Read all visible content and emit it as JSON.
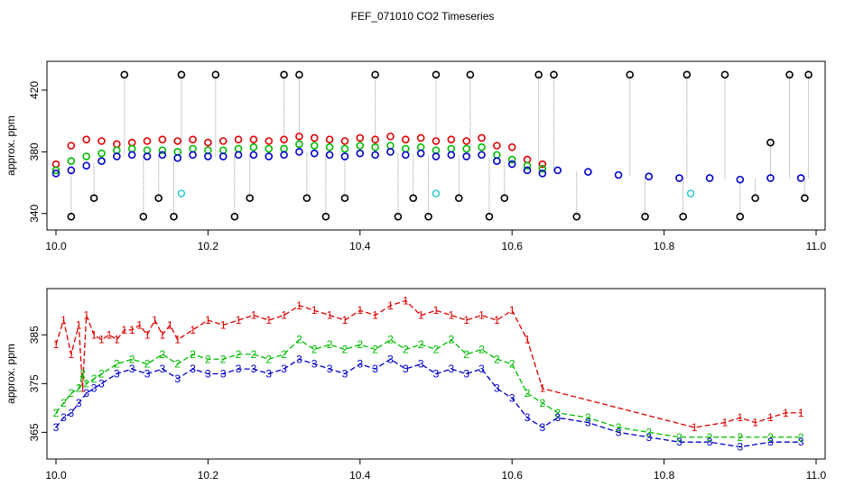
{
  "figure_title": "FEF_071010  CO2 Timeseries",
  "colors": {
    "series1": "#dd0000",
    "series2": "#00bb00",
    "series3": "#0000cc",
    "outlier": "#000000",
    "flagged": "#33cccc",
    "connector": "#9a9a9a"
  },
  "chart_data": [
    {
      "type": "scatter",
      "panel": "top",
      "title": "",
      "xlabel": "",
      "ylabel": "approx. ppm",
      "xlim": [
        10.0,
        11.0
      ],
      "ylim": [
        334,
        434
      ],
      "xticks": [
        10.0,
        10.2,
        10.4,
        10.6,
        10.8,
        11.0
      ],
      "xtick_labels": [
        "10.0",
        "10.2",
        "10.4",
        "10.6",
        "10.8",
        "11.0"
      ],
      "yticks": [
        340,
        380,
        420
      ],
      "ytick_labels": [
        "340",
        "380",
        "420"
      ],
      "series": [
        {
          "name": "series 1",
          "color": "#dd0000",
          "marker": "circle",
          "x": [
            10.0,
            10.02,
            10.04,
            10.06,
            10.08,
            10.1,
            10.12,
            10.14,
            10.16,
            10.18,
            10.2,
            10.22,
            10.24,
            10.26,
            10.28,
            10.3,
            10.32,
            10.34,
            10.36,
            10.38,
            10.4,
            10.42,
            10.44,
            10.46,
            10.48,
            10.5,
            10.52,
            10.54,
            10.56,
            10.58,
            10.6,
            10.62,
            10.64
          ],
          "values": [
            372,
            384,
            388,
            387,
            385,
            386,
            387,
            388,
            387,
            388,
            386,
            387,
            388,
            388,
            387,
            388,
            390,
            389,
            388,
            387,
            389,
            388,
            390,
            388,
            389,
            387,
            388,
            387,
            389,
            384,
            383,
            375,
            372
          ]
        },
        {
          "name": "series 2",
          "color": "#00bb00",
          "marker": "circle",
          "x": [
            10.0,
            10.02,
            10.04,
            10.06,
            10.08,
            10.1,
            10.12,
            10.14,
            10.16,
            10.18,
            10.2,
            10.22,
            10.24,
            10.26,
            10.28,
            10.3,
            10.32,
            10.34,
            10.36,
            10.38,
            10.4,
            10.42,
            10.44,
            10.46,
            10.48,
            10.5,
            10.52,
            10.54,
            10.56,
            10.58,
            10.6,
            10.62,
            10.64
          ],
          "values": [
            368,
            374,
            377,
            379,
            381,
            382,
            381,
            381,
            380,
            382,
            381,
            381,
            382,
            383,
            382,
            382,
            385,
            384,
            383,
            382,
            384,
            383,
            384,
            382,
            383,
            381,
            382,
            382,
            383,
            378,
            375,
            371,
            369
          ]
        },
        {
          "name": "series 3",
          "color": "#0000cc",
          "marker": "circle",
          "x": [
            10.0,
            10.02,
            10.04,
            10.06,
            10.08,
            10.1,
            10.12,
            10.14,
            10.16,
            10.18,
            10.2,
            10.22,
            10.24,
            10.26,
            10.28,
            10.3,
            10.32,
            10.34,
            10.36,
            10.38,
            10.4,
            10.42,
            10.44,
            10.46,
            10.48,
            10.5,
            10.52,
            10.54,
            10.56,
            10.58,
            10.6,
            10.62,
            10.64,
            10.66,
            10.7,
            10.74,
            10.78,
            10.82,
            10.86,
            10.9,
            10.94,
            10.98
          ],
          "values": [
            366,
            368,
            371,
            374,
            377,
            378,
            377,
            378,
            376,
            378,
            377,
            377,
            378,
            378,
            377,
            378,
            380,
            379,
            378,
            377,
            379,
            378,
            380,
            378,
            379,
            377,
            378,
            377,
            378,
            374,
            372,
            368,
            366,
            368,
            367,
            365,
            364,
            363,
            363,
            362,
            363,
            363
          ]
        },
        {
          "name": "outliers",
          "color": "#000000",
          "marker": "circle",
          "x": [
            10.02,
            10.05,
            10.09,
            10.115,
            10.135,
            10.155,
            10.165,
            10.21,
            10.235,
            10.255,
            10.3,
            10.32,
            10.33,
            10.355,
            10.38,
            10.42,
            10.45,
            10.47,
            10.49,
            10.5,
            10.53,
            10.545,
            10.57,
            10.59,
            10.635,
            10.655,
            10.685,
            10.755,
            10.775,
            10.83,
            10.825,
            10.88,
            10.9,
            10.92,
            10.94,
            10.965,
            10.985,
            10.99
          ],
          "values": [
            338,
            350,
            430,
            338,
            350,
            338,
            430,
            430,
            338,
            350,
            430,
            430,
            350,
            338,
            350,
            430,
            338,
            350,
            338,
            430,
            350,
            430,
            338,
            350,
            430,
            430,
            338,
            430,
            338,
            430,
            338,
            430,
            338,
            350,
            386,
            430,
            350,
            430
          ]
        },
        {
          "name": "flagged",
          "color": "#33cccc",
          "marker": "circle",
          "x": [
            10.165,
            10.5,
            10.835
          ],
          "values": [
            353,
            353,
            353
          ]
        }
      ]
    },
    {
      "type": "line",
      "panel": "bottom",
      "title": "",
      "xlabel": "",
      "ylabel": "approx. ppm",
      "xlim": [
        10.0,
        11.0
      ],
      "ylim": [
        361,
        393
      ],
      "xticks": [
        10.0,
        10.2,
        10.4,
        10.6,
        10.8,
        11.0
      ],
      "xtick_labels": [
        "10.0",
        "10.2",
        "10.4",
        "10.6",
        "10.8",
        "11.0"
      ],
      "yticks": [
        365,
        375,
        385
      ],
      "ytick_labels": [
        "365",
        "375",
        "385"
      ],
      "series": [
        {
          "name": "1",
          "color": "#dd0000",
          "marker": "1",
          "x": [
            10.0,
            10.01,
            10.02,
            10.03,
            10.035,
            10.04,
            10.05,
            10.06,
            10.07,
            10.08,
            10.09,
            10.1,
            10.11,
            10.12,
            10.13,
            10.14,
            10.15,
            10.16,
            10.18,
            10.2,
            10.22,
            10.24,
            10.26,
            10.28,
            10.3,
            10.32,
            10.34,
            10.36,
            10.38,
            10.4,
            10.42,
            10.44,
            10.46,
            10.48,
            10.5,
            10.52,
            10.54,
            10.56,
            10.58,
            10.6,
            10.62,
            10.64,
            10.84,
            10.88,
            10.9,
            10.92,
            10.94,
            10.96,
            10.98
          ],
          "values": [
            383,
            388,
            381,
            387,
            374,
            389,
            385,
            384,
            385,
            384,
            386,
            386,
            387,
            385,
            388,
            385,
            387,
            384,
            386,
            388,
            387,
            388,
            389,
            388,
            389,
            391,
            390,
            389,
            388,
            390,
            389,
            391,
            392,
            389,
            390,
            389,
            388,
            389,
            388,
            390,
            384,
            374,
            366,
            367,
            368,
            367,
            368,
            369,
            369
          ]
        },
        {
          "name": "2",
          "color": "#00bb00",
          "marker": "2",
          "x": [
            10.0,
            10.01,
            10.02,
            10.03,
            10.035,
            10.04,
            10.05,
            10.06,
            10.08,
            10.1,
            10.12,
            10.14,
            10.16,
            10.18,
            10.2,
            10.22,
            10.24,
            10.26,
            10.28,
            10.3,
            10.32,
            10.34,
            10.36,
            10.38,
            10.4,
            10.42,
            10.44,
            10.46,
            10.48,
            10.5,
            10.52,
            10.54,
            10.56,
            10.58,
            10.6,
            10.62,
            10.64,
            10.66,
            10.7,
            10.74,
            10.78,
            10.82,
            10.86,
            10.9,
            10.94,
            10.98
          ],
          "values": [
            369,
            371,
            373,
            374,
            377,
            375,
            376,
            377,
            379,
            380,
            379,
            381,
            379,
            381,
            380,
            380,
            381,
            381,
            380,
            381,
            384,
            382,
            383,
            382,
            383,
            382,
            384,
            382,
            383,
            382,
            384,
            381,
            382,
            380,
            379,
            373,
            371,
            369,
            368,
            366,
            365,
            364,
            364,
            364,
            364,
            364
          ]
        },
        {
          "name": "3",
          "color": "#0000cc",
          "marker": "3",
          "x": [
            10.0,
            10.01,
            10.02,
            10.03,
            10.04,
            10.05,
            10.06,
            10.08,
            10.1,
            10.12,
            10.14,
            10.16,
            10.18,
            10.2,
            10.22,
            10.24,
            10.26,
            10.28,
            10.3,
            10.32,
            10.34,
            10.36,
            10.38,
            10.4,
            10.42,
            10.44,
            10.46,
            10.48,
            10.5,
            10.52,
            10.54,
            10.56,
            10.58,
            10.6,
            10.62,
            10.64,
            10.66,
            10.7,
            10.74,
            10.78,
            10.82,
            10.86,
            10.9,
            10.94,
            10.98
          ],
          "values": [
            366,
            368,
            369,
            371,
            373,
            374,
            375,
            377,
            378,
            377,
            378,
            376,
            378,
            377,
            377,
            378,
            378,
            377,
            378,
            380,
            379,
            378,
            377,
            379,
            378,
            380,
            378,
            379,
            377,
            378,
            377,
            378,
            374,
            372,
            368,
            366,
            368,
            367,
            365,
            364,
            363,
            363,
            362,
            363,
            363
          ]
        }
      ]
    }
  ]
}
